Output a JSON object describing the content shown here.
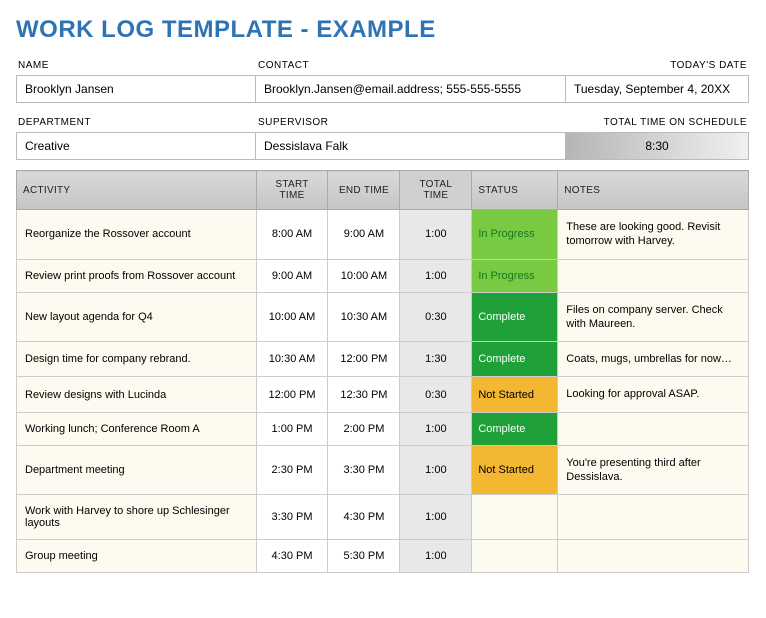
{
  "title": "WORK LOG TEMPLATE - EXAMPLE",
  "header": {
    "labels": {
      "name": "NAME",
      "contact": "CONTACT",
      "date": "TODAY'S DATE",
      "department": "DEPARTMENT",
      "supervisor": "SUPERVISOR",
      "total_time": "TOTAL TIME ON SCHEDULE"
    },
    "name": "Brooklyn Jansen",
    "contact": "Brooklyn.Jansen@email.address; 555-555-5555",
    "date": "Tuesday, September 4, 20XX",
    "department": "Creative",
    "supervisor": "Dessislava Falk",
    "total_time": "8:30"
  },
  "table": {
    "columns": [
      "ACTIVITY",
      "START TIME",
      "END TIME",
      "TOTAL TIME",
      "STATUS",
      "NOTES"
    ],
    "status_colors": {
      "In Progress": {
        "bg": "#7ac943",
        "fg": "#137a1f"
      },
      "Complete": {
        "bg": "#1fa038",
        "fg": "#ffffff"
      },
      "Not Started": {
        "bg": "#f4b731",
        "fg": "#000000"
      },
      "": {
        "bg": "#fdfbef",
        "fg": "#000000"
      }
    },
    "rows": [
      {
        "activity": "Reorganize the Rossover account",
        "start": "8:00 AM",
        "end": "9:00 AM",
        "total": "1:00",
        "status": "In Progress",
        "notes": "These are looking good. Revisit tomorrow with Harvey."
      },
      {
        "activity": "Review print proofs from Rossover account",
        "start": "9:00 AM",
        "end": "10:00 AM",
        "total": "1:00",
        "status": "In Progress",
        "notes": ""
      },
      {
        "activity": "New layout agenda for Q4",
        "start": "10:00 AM",
        "end": "10:30 AM",
        "total": "0:30",
        "status": "Complete",
        "notes": "Files on company server. Check with Maureen."
      },
      {
        "activity": "Design time for company rebrand.",
        "start": "10:30 AM",
        "end": "12:00 PM",
        "total": "1:30",
        "status": "Complete",
        "notes": "Coats, mugs, umbrellas for now…"
      },
      {
        "activity": "Review designs with Lucinda",
        "start": "12:00 PM",
        "end": "12:30 PM",
        "total": "0:30",
        "status": "Not Started",
        "notes": "Looking for approval ASAP."
      },
      {
        "activity": "Working lunch; Conference Room A",
        "start": "1:00 PM",
        "end": "2:00 PM",
        "total": "1:00",
        "status": "Complete",
        "notes": ""
      },
      {
        "activity": "Department meeting",
        "start": "2:30 PM",
        "end": "3:30 PM",
        "total": "1:00",
        "status": "Not Started",
        "notes": "You're presenting third after Dessislava."
      },
      {
        "activity": "Work with Harvey to shore up Schlesinger layouts",
        "start": "3:30 PM",
        "end": "4:30 PM",
        "total": "1:00",
        "status": "",
        "notes": ""
      },
      {
        "activity": "Group meeting",
        "start": "4:30 PM",
        "end": "5:30 PM",
        "total": "1:00",
        "status": "",
        "notes": ""
      }
    ],
    "col_widths": {
      "activity": 240,
      "start": 72,
      "end": 72,
      "total": 72,
      "status": 86,
      "notes": 191
    },
    "cell_bg": {
      "activity": "#fdfbef",
      "total": "#e8e8e8",
      "notes": "#fdfbef"
    }
  },
  "colors": {
    "title": "#2e74b5",
    "header_gradient": [
      "#d9d9d9",
      "#c5c5c5"
    ],
    "border": "#bbbbbb",
    "total_time_gradient": [
      "#b5b5b5",
      "#f0f0f0"
    ]
  }
}
